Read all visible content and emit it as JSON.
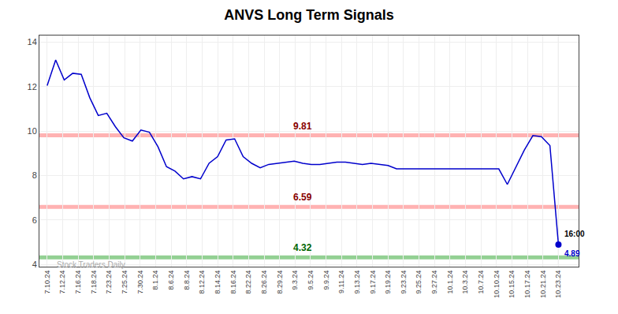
{
  "chart_data": {
    "type": "line",
    "title": "ANVS Long Term Signals",
    "x": [
      0,
      0.55,
      1.1,
      1.65,
      2.2,
      2.75,
      3.3,
      3.85,
      4.4,
      4.95,
      5.5,
      6.05,
      6.6,
      7.15,
      7.7,
      8.25,
      8.8,
      9.35,
      9.9,
      10.45,
      11,
      11.55,
      12.1,
      12.65,
      13.2,
      13.75,
      14.3,
      14.85,
      15.4,
      15.95,
      16.5,
      17.05,
      17.6,
      18.15,
      18.7,
      19.25,
      19.8,
      20.35,
      20.9,
      21.45,
      22,
      22.55,
      23.1,
      23.65,
      24.2,
      24.75,
      25.3,
      25.85,
      26.4,
      26.95,
      27.5,
      28.05,
      28.6,
      29.15,
      29.7,
      30.25,
      30.8,
      31.35,
      31.9,
      32.45,
      33
    ],
    "values": [
      12.05,
      13.2,
      12.3,
      12.6,
      12.55,
      11.5,
      10.7,
      10.8,
      10.2,
      9.7,
      9.55,
      10.05,
      9.95,
      9.3,
      8.4,
      8.2,
      7.85,
      7.95,
      7.85,
      8.55,
      8.85,
      9.6,
      9.65,
      8.85,
      8.55,
      8.35,
      8.5,
      8.55,
      8.6,
      8.65,
      8.55,
      8.5,
      8.5,
      8.55,
      8.6,
      8.6,
      8.55,
      8.5,
      8.55,
      8.5,
      8.45,
      8.3,
      8.3,
      8.3,
      8.3,
      8.3,
      8.3,
      8.3,
      8.3,
      8.3,
      8.3,
      8.3,
      8.3,
      8.3,
      7.6,
      8.35,
      9.15,
      9.8,
      9.75,
      9.35,
      4.89
    ],
    "color": "#0000cc",
    "xlim": [
      -0.5,
      34.3
    ],
    "xticks": [
      {
        "value": 0,
        "label": "7.10.24"
      },
      {
        "value": 1,
        "label": "7.12.24"
      },
      {
        "value": 2,
        "label": "7.16.24"
      },
      {
        "value": 3,
        "label": "7.18.24"
      },
      {
        "value": 4,
        "label": "7.23.24"
      },
      {
        "value": 5,
        "label": "7.25.24"
      },
      {
        "value": 6,
        "label": "7.30.24"
      },
      {
        "value": 7,
        "label": "8.1.24"
      },
      {
        "value": 8,
        "label": "8.6.24"
      },
      {
        "value": 9,
        "label": "8.8.24"
      },
      {
        "value": 10,
        "label": "8.12.24"
      },
      {
        "value": 11,
        "label": "8.14.24"
      },
      {
        "value": 12,
        "label": "8.16.24"
      },
      {
        "value": 13,
        "label": "8.22.24"
      },
      {
        "value": 14,
        "label": "8.26.24"
      },
      {
        "value": 15,
        "label": "8.29.24"
      },
      {
        "value": 16,
        "label": "9.3.24"
      },
      {
        "value": 17,
        "label": "9.5.24"
      },
      {
        "value": 18,
        "label": "9.9.24"
      },
      {
        "value": 19,
        "label": "9.11.24"
      },
      {
        "value": 20,
        "label": "9.13.24"
      },
      {
        "value": 21,
        "label": "9.17.24"
      },
      {
        "value": 22,
        "label": "9.19.24"
      },
      {
        "value": 23,
        "label": "9.23.24"
      },
      {
        "value": 24,
        "label": "9.25.24"
      },
      {
        "value": 25,
        "label": "9.27.24"
      },
      {
        "value": 26,
        "label": "10.1.24"
      },
      {
        "value": 27,
        "label": "10.3.24"
      },
      {
        "value": 28,
        "label": "10.7.24"
      },
      {
        "value": 29,
        "label": "10.10.24"
      },
      {
        "value": 30,
        "label": "10.15.24"
      },
      {
        "value": 31,
        "label": "10.17.24"
      },
      {
        "value": 32,
        "label": "10.21.24"
      },
      {
        "value": 33,
        "label": "10.23.24"
      }
    ],
    "ylim": [
      3.9,
      14.3
    ],
    "yticks": [
      4,
      6,
      8,
      10,
      12,
      14
    ],
    "grid": true,
    "hlines": [
      {
        "value": 9.81,
        "color": "#ffaaaa",
        "label": "9.81",
        "label_color": "#880000"
      },
      {
        "value": 6.59,
        "color": "#ffaaaa",
        "label": "6.59",
        "label_color": "#880000"
      },
      {
        "value": 4.32,
        "color": "#88cc88",
        "label": "4.32",
        "label_color": "#006600"
      }
    ],
    "vlines": [
      {
        "value": 33,
        "color": "#888888"
      }
    ],
    "annotations": [
      {
        "text": "16:00",
        "x": 33,
        "y": 4.89,
        "color": "#000000"
      },
      {
        "text": "4.89",
        "x": 33,
        "y": 4.89,
        "color": "#0000cc"
      },
      {
        "text": "Stock Traders Daily",
        "x": 0.5,
        "y": 4.27,
        "color": "#aaaaaa"
      }
    ]
  }
}
